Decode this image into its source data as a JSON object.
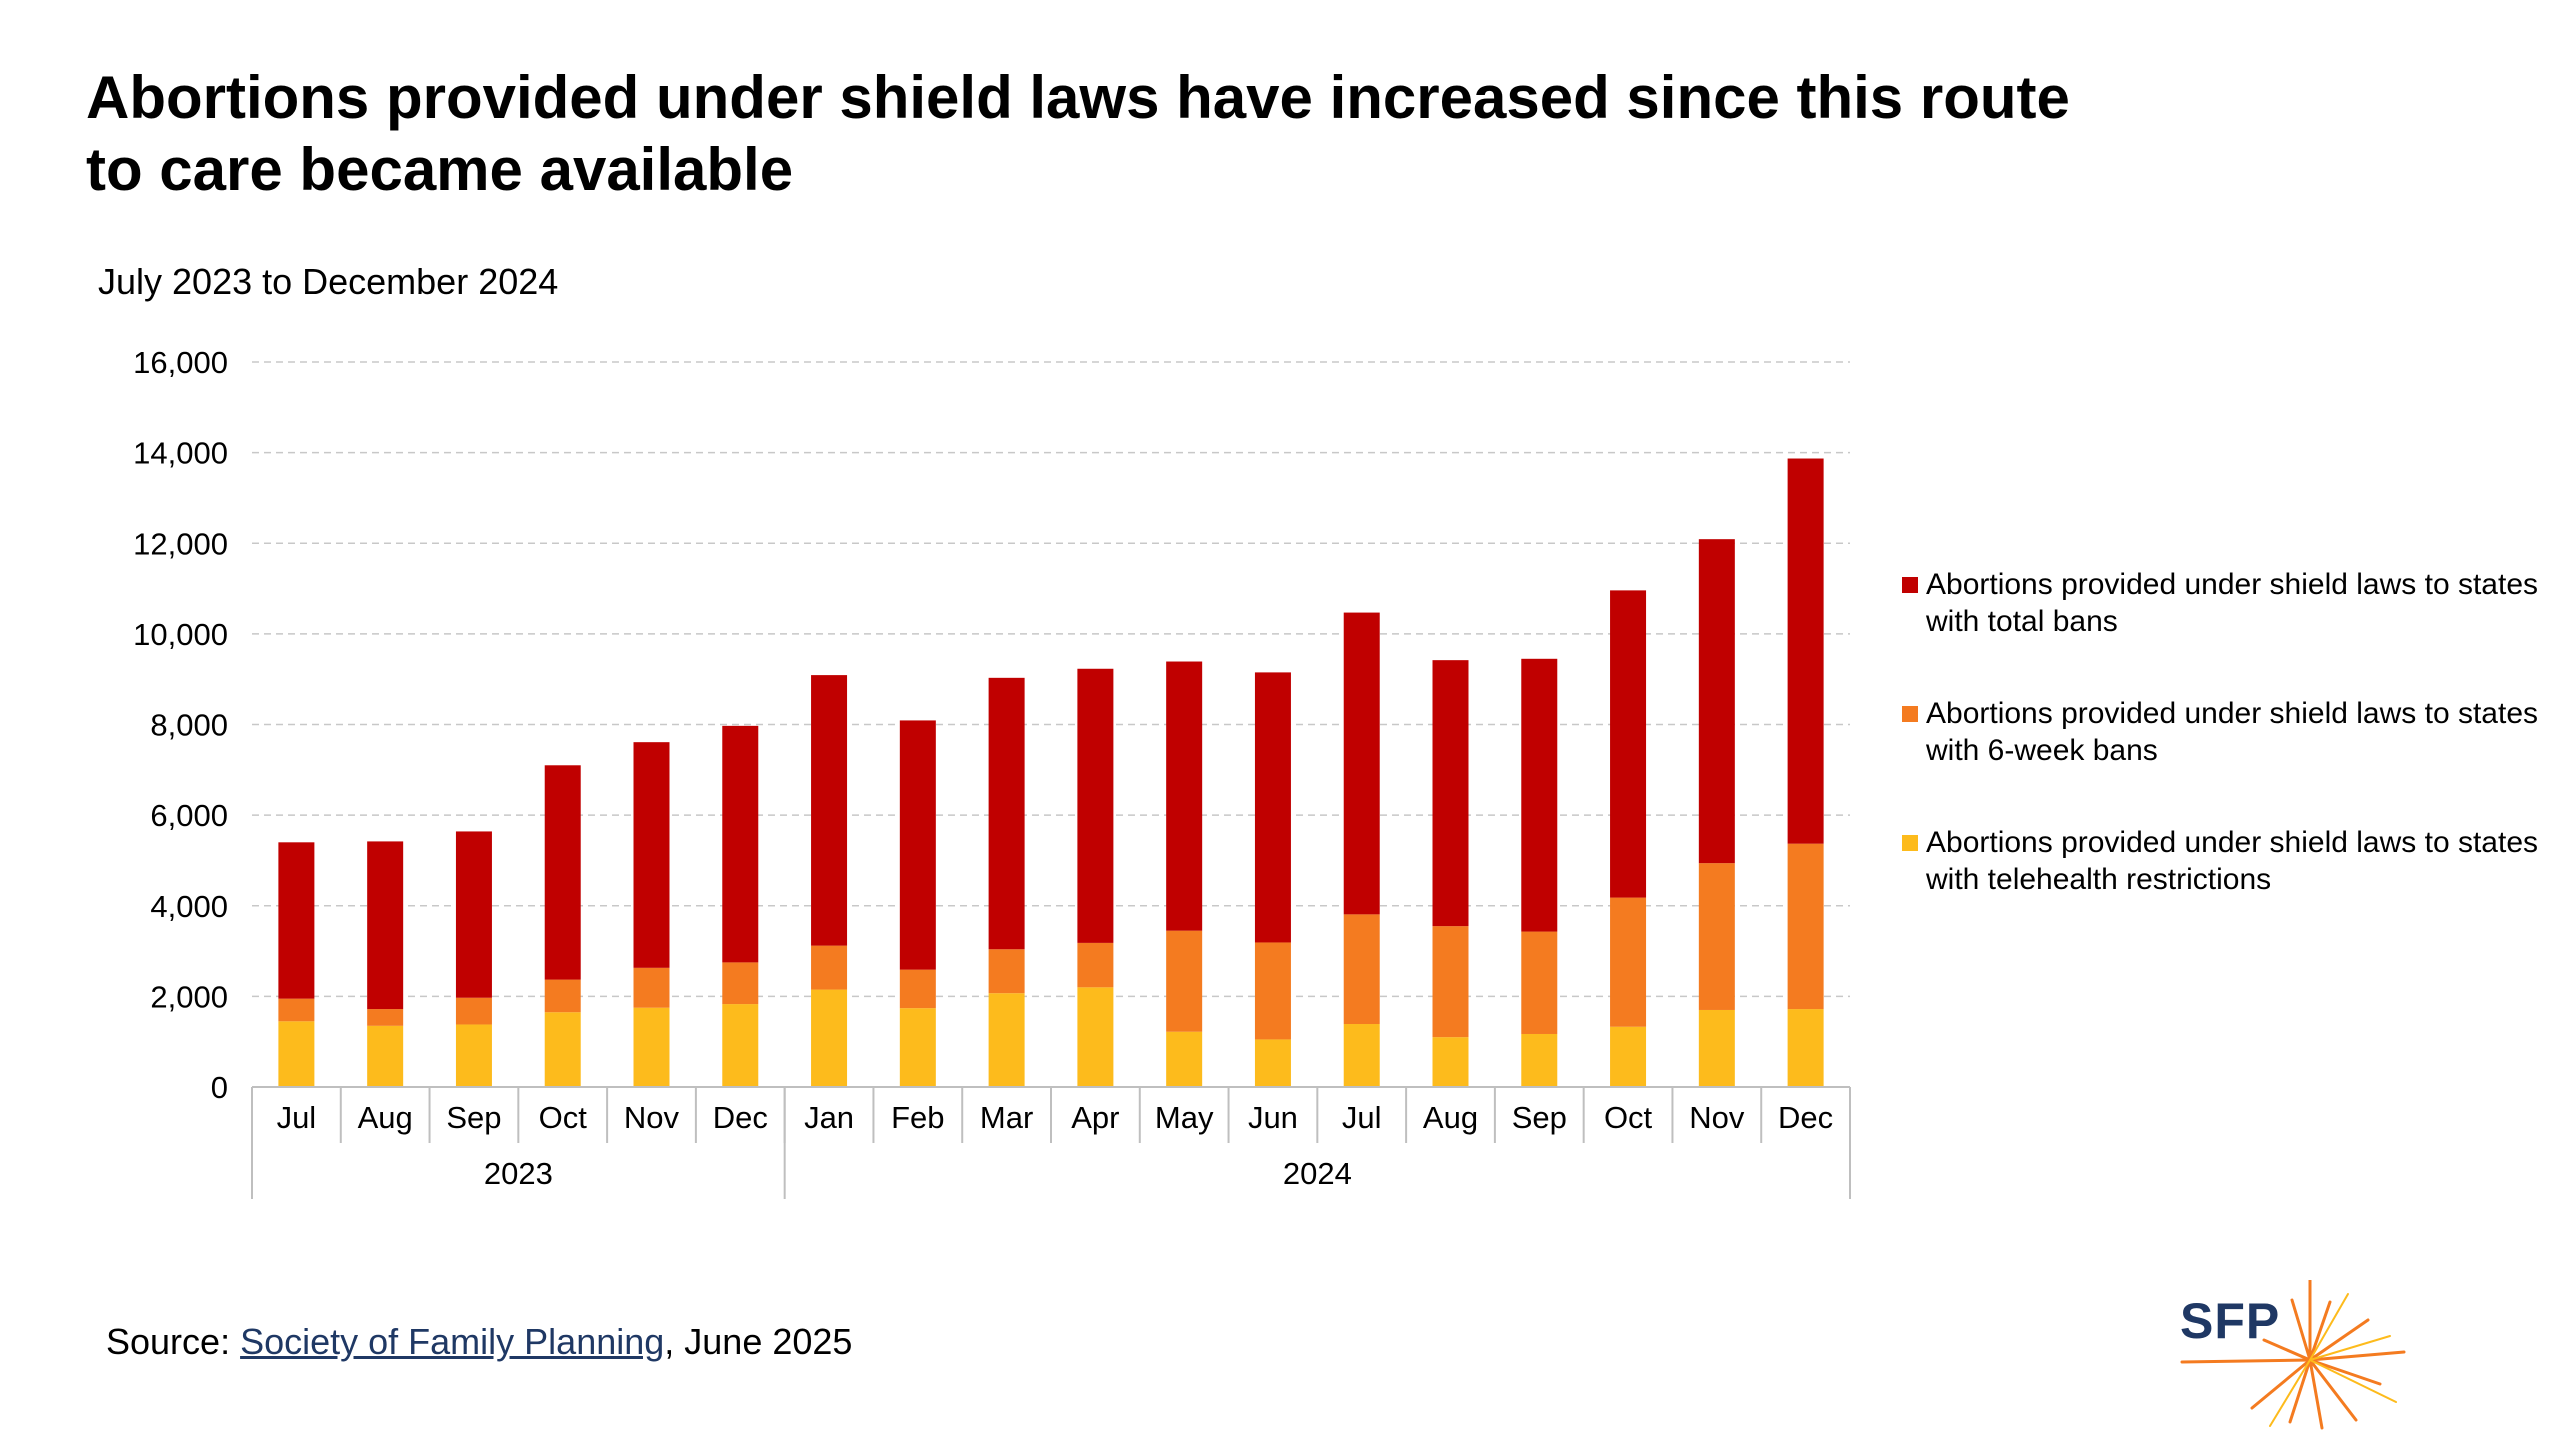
{
  "page": {
    "title": "Abortions provided under shield laws have increased since this route to care became available",
    "subtitle": "July 2023 to December 2024",
    "source_prefix": "Source: ",
    "source_link": "Society of Family Planning",
    "source_suffix": ", June 2025",
    "logo_text": "SFP"
  },
  "colors": {
    "total_bans": "#c00000",
    "six_week_bans": "#f47b20",
    "telehealth": "#fdbb1c",
    "gridline": "#c8c8c8",
    "axis": "#bfbfbf"
  },
  "chart_data": {
    "type": "bar",
    "stacked": true,
    "categories": [
      "Jul",
      "Aug",
      "Sep",
      "Oct",
      "Nov",
      "Dec",
      "Jan",
      "Feb",
      "Mar",
      "Apr",
      "May",
      "Jun",
      "Jul",
      "Aug",
      "Sep",
      "Oct",
      "Nov",
      "Dec"
    ],
    "category_groups": [
      {
        "label": "2023",
        "count": 6
      },
      {
        "label": "2024",
        "count": 12
      }
    ],
    "series": [
      {
        "name": "Abortions provided under shield laws to states with telehealth restrictions",
        "color": "#fdbb1c",
        "values": [
          1450,
          1350,
          1380,
          1650,
          1750,
          1830,
          2150,
          1740,
          2070,
          2200,
          1220,
          1050,
          1390,
          1100,
          1170,
          1330,
          1700,
          1720
        ]
      },
      {
        "name": "Abortions provided under shield laws to states with 6-week bans",
        "color": "#f47b20",
        "values": [
          500,
          370,
          590,
          720,
          880,
          920,
          970,
          850,
          970,
          980,
          2230,
          2140,
          2420,
          2450,
          2260,
          2850,
          3240,
          3650
        ]
      },
      {
        "name": "Abortions provided under shield laws to states with total bans",
        "color": "#c00000",
        "values": [
          3450,
          3700,
          3670,
          4730,
          4980,
          5220,
          5970,
          5500,
          5990,
          6050,
          5940,
          5960,
          6660,
          5870,
          6020,
          6780,
          7150,
          8500
        ]
      }
    ],
    "ylim": [
      0,
      16000
    ],
    "yticks": [
      "0",
      "2,000",
      "4,000",
      "6,000",
      "8,000",
      "10,000",
      "12,000",
      "14,000",
      "16,000"
    ],
    "grid": true,
    "legend_position": "right"
  }
}
